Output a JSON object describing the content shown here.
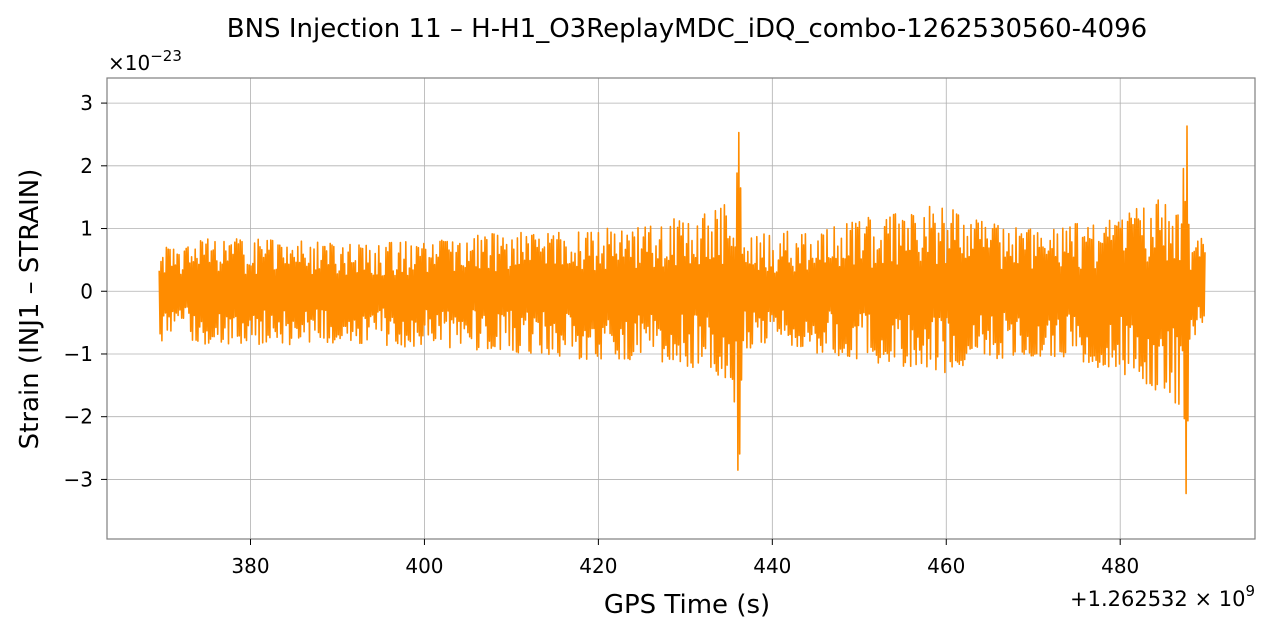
{
  "chart_data": {
    "type": "line",
    "title": "BNS Injection 11 – H-H1_O3ReplayMDC_iDQ_combo-1262530560-4096",
    "xlabel": "GPS Time (s)",
    "ylabel": "Strain (INJ1 – STRAIN)",
    "x_offset_label": "+1.262532 × 10",
    "x_offset_exp": "9",
    "y_multiplier_label": "×10",
    "y_multiplier_exp": "−23",
    "xlim": [
      363.5,
      495.5
    ],
    "ylim": [
      -3.95,
      3.4
    ],
    "xticks": [
      380,
      400,
      420,
      440,
      460,
      480
    ],
    "xtick_labels": [
      "380",
      "400",
      "420",
      "440",
      "460",
      "480"
    ],
    "yticks": [
      -3,
      -2,
      -1,
      0,
      1,
      2,
      3
    ],
    "ytick_labels": [
      "−3",
      "−2",
      "−1",
      "0",
      "1",
      "2",
      "3"
    ],
    "grid": true,
    "series": [
      {
        "color": "#ff8c00",
        "x_start": 369.5,
        "x_end": 489.8,
        "envelope_x": [
          369.5,
          375,
          380,
          385,
          390,
          395,
          400,
          405,
          410,
          415,
          420,
          425,
          430,
          433,
          435.5,
          436.2,
          436.6,
          437,
          440,
          445,
          450,
          455,
          460,
          465,
          470,
          475,
          480,
          483,
          485,
          486.8,
          487.6,
          488,
          488.5,
          489.8
        ],
        "envelope_max": [
          0.7,
          0.85,
          0.85,
          0.8,
          0.8,
          0.8,
          0.8,
          0.9,
          0.95,
          0.95,
          1.0,
          1.05,
          1.2,
          1.3,
          1.45,
          2.72,
          0.9,
          0.9,
          0.95,
          1.0,
          1.15,
          1.3,
          1.4,
          1.1,
          1.0,
          1.1,
          1.25,
          1.4,
          1.5,
          1.4,
          3.07,
          0.9,
          0.9,
          0.85
        ],
        "envelope_min": [
          -0.8,
          -0.85,
          -0.85,
          -0.85,
          -0.85,
          -0.85,
          -0.95,
          -0.95,
          -1.0,
          -1.05,
          -1.1,
          -1.1,
          -1.2,
          -1.3,
          -1.6,
          -3.32,
          -0.9,
          -0.9,
          -0.95,
          -1.0,
          -1.1,
          -1.2,
          -1.3,
          -1.1,
          -1.05,
          -1.15,
          -1.3,
          -1.5,
          -1.65,
          -1.9,
          -3.62,
          -0.95,
          -0.85,
          -0.6
        ]
      }
    ]
  }
}
